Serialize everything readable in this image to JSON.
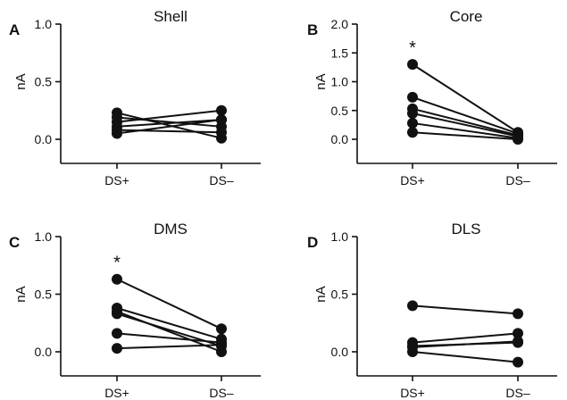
{
  "chart_data": [
    {
      "panel_label": "A",
      "type": "line",
      "title": "Shell",
      "xlabel": "",
      "ylabel": "nA",
      "categories": [
        "DS+",
        "DS–"
      ],
      "ylim": [
        0.0,
        1.0
      ],
      "yticks": [
        "0.0",
        "0.5",
        "1.0"
      ],
      "significance": "",
      "series": [
        {
          "values": [
            0.23,
            0.01
          ]
        },
        {
          "values": [
            0.19,
            0.11
          ]
        },
        {
          "values": [
            0.15,
            0.25
          ]
        },
        {
          "values": [
            0.11,
            0.17
          ]
        },
        {
          "values": [
            0.08,
            0.06
          ]
        },
        {
          "values": [
            0.05,
            0.17
          ]
        }
      ]
    },
    {
      "panel_label": "B",
      "type": "line",
      "title": "Core",
      "xlabel": "",
      "ylabel": "nA",
      "categories": [
        "DS+",
        "DS–"
      ],
      "ylim": [
        0.0,
        2.0
      ],
      "yticks": [
        "0.0",
        "0.5",
        "1.0",
        "1.5",
        "2.0"
      ],
      "significance": "*",
      "series": [
        {
          "values": [
            1.3,
            0.12
          ]
        },
        {
          "values": [
            0.73,
            0.1
          ]
        },
        {
          "values": [
            0.53,
            0.07
          ]
        },
        {
          "values": [
            0.45,
            0.05
          ]
        },
        {
          "values": [
            0.28,
            0.02
          ]
        },
        {
          "values": [
            0.12,
            0.0
          ]
        }
      ]
    },
    {
      "panel_label": "C",
      "type": "line",
      "title": "DMS",
      "xlabel": "",
      "ylabel": "nA",
      "categories": [
        "DS+",
        "DS–"
      ],
      "ylim": [
        0.0,
        1.0
      ],
      "yticks": [
        "0.0",
        "0.5",
        "1.0"
      ],
      "significance": "*",
      "series": [
        {
          "values": [
            0.63,
            0.2
          ]
        },
        {
          "values": [
            0.38,
            0.11
          ]
        },
        {
          "values": [
            0.35,
            0.0
          ]
        },
        {
          "values": [
            0.33,
            0.05
          ]
        },
        {
          "values": [
            0.16,
            0.08
          ]
        },
        {
          "values": [
            0.03,
            0.06
          ]
        }
      ]
    },
    {
      "panel_label": "D",
      "type": "line",
      "title": "DLS",
      "xlabel": "",
      "ylabel": "nA",
      "categories": [
        "DS+",
        "DS–"
      ],
      "ylim": [
        0.0,
        1.0
      ],
      "yticks": [
        "0.0",
        "0.5",
        "1.0"
      ],
      "significance": "",
      "series": [
        {
          "values": [
            0.4,
            0.33
          ]
        },
        {
          "values": [
            0.08,
            0.16
          ]
        },
        {
          "values": [
            0.05,
            0.08
          ]
        },
        {
          "values": [
            0.04,
            0.09
          ]
        },
        {
          "values": [
            0.0,
            -0.09
          ]
        }
      ]
    }
  ]
}
